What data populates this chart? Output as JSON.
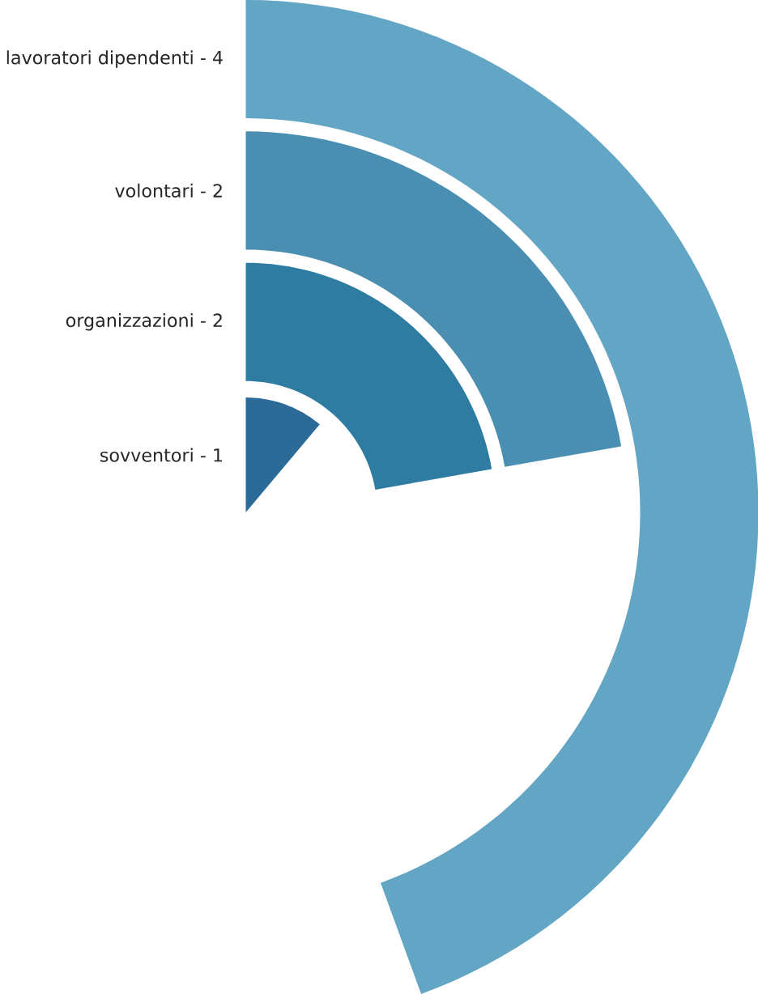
{
  "chart_data": {
    "type": "other",
    "categories": [
      "lavoratori dipendenti -",
      "volontari -",
      "organizzazioni -",
      "sovventori -"
    ],
    "data_labels": true,
    "values": [
      4,
      2,
      2,
      1
    ],
    "colors": [
      "#62a5c4",
      "#4a8fb1",
      "#2e7ca2",
      "#2c6b98"
    ]
  }
}
